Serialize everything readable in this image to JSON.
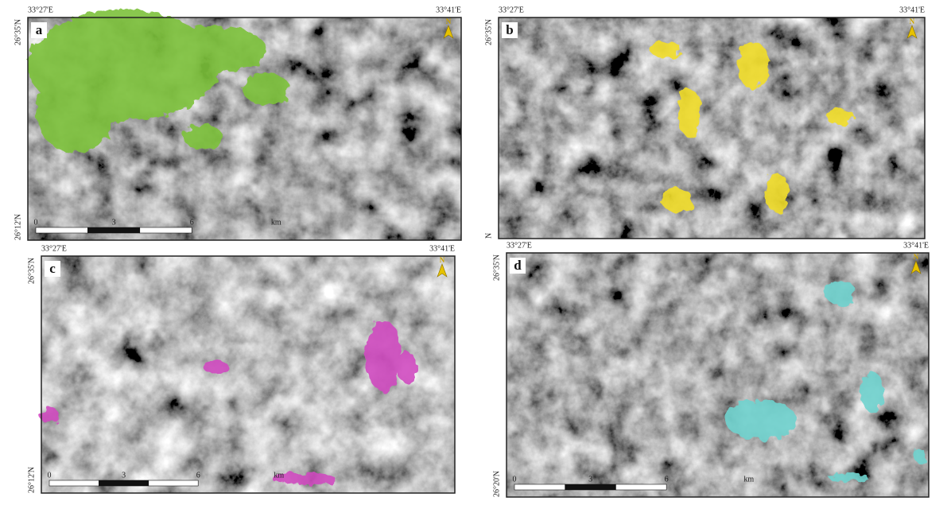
{
  "panels": [
    {
      "label": "a",
      "lon_left": "33°27'E",
      "lon_right": "33°41'E",
      "lat_top": "26°35'N",
      "lat_bottom": "26°12'N",
      "north": "N",
      "scale_labels": [
        "0",
        "3",
        "6",
        "km"
      ]
    },
    {
      "label": "b",
      "lon_left": "33°27'E",
      "lon_right": "33°41'E",
      "lat_top": "26°35'N",
      "lat_bottom": "N",
      "north": "N",
      "scale_labels": []
    },
    {
      "label": "c",
      "lon_left": "33°27'E",
      "lon_right": "33°41'E",
      "lat_top": "26°35'N",
      "lat_bottom": "26°12'N",
      "north": "N",
      "scale_labels": [
        "0",
        "3",
        "6",
        "km"
      ]
    },
    {
      "label": "d",
      "lon_left": "33°27'E",
      "lon_right": "33°41'E",
      "lat_top": "26°35'N",
      "lat_bottom": "26°20'N",
      "north": "N",
      "scale_labels": [
        "0",
        "3",
        "6",
        "km"
      ]
    }
  ]
}
